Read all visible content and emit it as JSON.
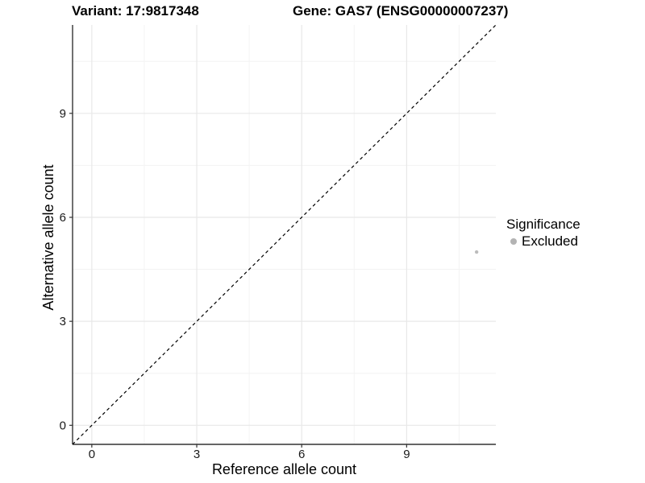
{
  "chart_data": {
    "type": "scatter",
    "titles": [
      "Variant: 17:9817348",
      "Gene: GAS7 (ENSG00000007237)"
    ],
    "xlabel": "Reference allele count",
    "ylabel": "Alternative allele count",
    "xlim": [
      -0.55,
      11.55
    ],
    "ylim": [
      -0.55,
      11.55
    ],
    "x_ticks": [
      0,
      3,
      6,
      9
    ],
    "y_ticks": [
      0,
      3,
      6,
      9
    ],
    "grid": "major and minor gridlines, light gray on white background",
    "legend_title": "Significance",
    "legend_position": "right",
    "reference_line": {
      "type": "identity y = x",
      "style": "dashed",
      "color": "#000000"
    },
    "series": [
      {
        "name": "Excluded",
        "color": "#bcbcbc",
        "points": [
          {
            "x": 11,
            "y": 5
          }
        ]
      }
    ]
  },
  "style": {
    "background": "#ffffff",
    "major_grid_color": "#e8e8e8",
    "minor_grid_color": "#f3f3f3",
    "axis_line_color": "#333333",
    "tick_label_color": "#1a1a1a",
    "title_color": "#000000",
    "legend_dot_color": "#b3b3b3"
  }
}
